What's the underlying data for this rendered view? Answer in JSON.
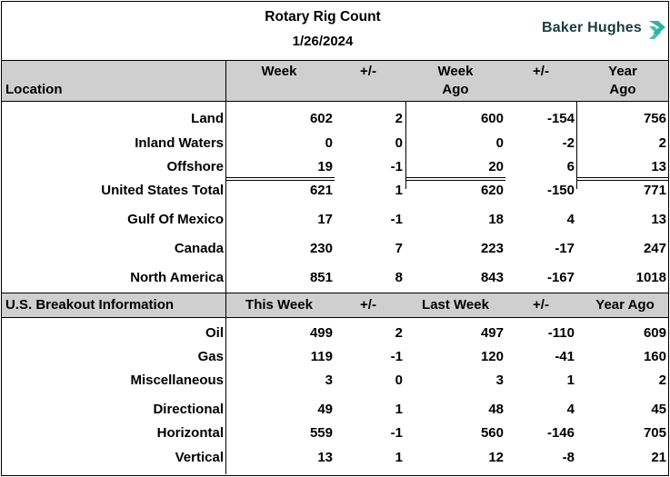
{
  "header": {
    "title": "Rotary Rig Count",
    "date": "1/26/2024",
    "brand": "Baker Hughes"
  },
  "table1": {
    "columns": [
      "Location",
      "Week",
      "+/-",
      "Week",
      "Ago",
      "+/-",
      "Year",
      "Ago"
    ],
    "rows": [
      {
        "label": "Land",
        "week": "602",
        "chg1": "2",
        "week_ago": "600",
        "chg2": "-154",
        "year_ago": "756"
      },
      {
        "label": "Inland Waters",
        "week": "0",
        "chg1": "0",
        "week_ago": "0",
        "chg2": "-2",
        "year_ago": "2"
      },
      {
        "label": "Offshore",
        "week": "19",
        "chg1": "-1",
        "week_ago": "20",
        "chg2": "6",
        "year_ago": "13"
      },
      {
        "label": "United States Total",
        "week": "621",
        "chg1": "1",
        "week_ago": "620",
        "chg2": "-150",
        "year_ago": "771"
      },
      {
        "label": "Gulf Of Mexico",
        "week": "17",
        "chg1": "-1",
        "week_ago": "18",
        "chg2": "4",
        "year_ago": "13"
      },
      {
        "label": "Canada",
        "week": "230",
        "chg1": "7",
        "week_ago": "223",
        "chg2": "-17",
        "year_ago": "247"
      },
      {
        "label": "North America",
        "week": "851",
        "chg1": "8",
        "week_ago": "843",
        "chg2": "-167",
        "year_ago": "1018"
      }
    ]
  },
  "table2": {
    "columns": [
      "U.S. Breakout Information",
      "This Week",
      "+/-",
      "Last Week",
      "+/-",
      "Year Ago"
    ],
    "rows": [
      {
        "label": "Oil",
        "week": "499",
        "chg1": "2",
        "week_ago": "497",
        "chg2": "-110",
        "year_ago": "609"
      },
      {
        "label": "Gas",
        "week": "119",
        "chg1": "-1",
        "week_ago": "120",
        "chg2": "-41",
        "year_ago": "160"
      },
      {
        "label": "Miscellaneous",
        "week": "3",
        "chg1": "0",
        "week_ago": "3",
        "chg2": "1",
        "year_ago": "2"
      },
      {
        "label": "Directional",
        "week": "49",
        "chg1": "1",
        "week_ago": "48",
        "chg2": "4",
        "year_ago": "45"
      },
      {
        "label": "Horizontal",
        "week": "559",
        "chg1": "-1",
        "week_ago": "560",
        "chg2": "-146",
        "year_ago": "705"
      },
      {
        "label": "Vertical",
        "week": "13",
        "chg1": "1",
        "week_ago": "12",
        "chg2": "-8",
        "year_ago": "21"
      }
    ]
  }
}
